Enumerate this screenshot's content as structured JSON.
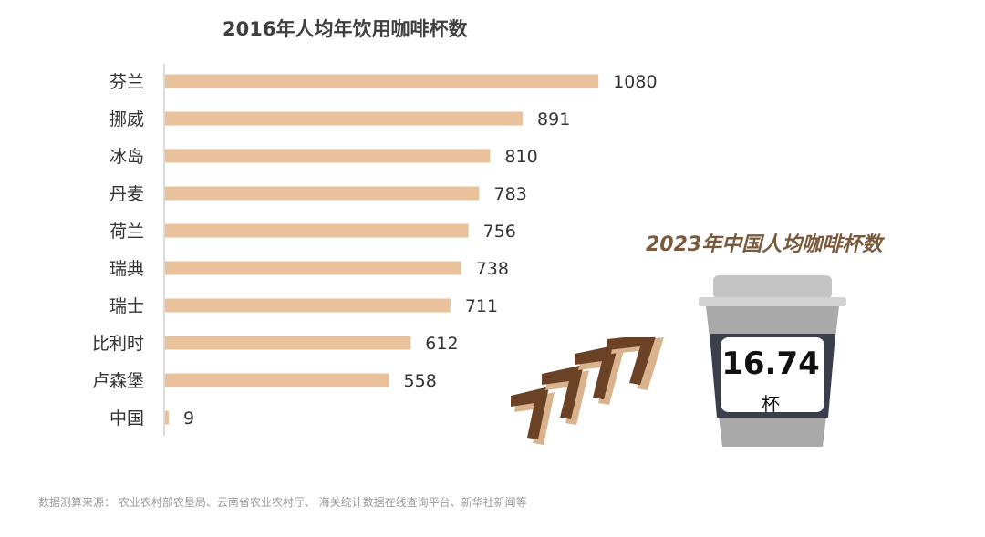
{
  "chart_data": {
    "type": "bar",
    "orientation": "horizontal",
    "title": "2016年人均年饮用咖啡杯数",
    "categories": [
      "芬兰",
      "挪威",
      "冰岛",
      "丹麦",
      "荷兰",
      "瑞典",
      "瑞士",
      "比利时",
      "卢森堡",
      "中国"
    ],
    "values": [
      1080,
      891,
      810,
      783,
      756,
      738,
      711,
      612,
      558,
      9
    ],
    "xlim": [
      0,
      1200
    ],
    "grid": false,
    "legend": "none",
    "bar_color": "#e9c29b"
  },
  "infographic": {
    "title": "2023年中国人均咖啡杯数",
    "value": "16.74",
    "unit": "杯"
  },
  "source_note": "数据测算来源： 农业农村部农垦局、云南省农业农村厅、 海关统计数据在线查询平台、新华社新闻等",
  "colors": {
    "cup_body": "#a9a9a9",
    "cup_lid": "#c4c4c4",
    "cup_band": "#3a3f4b",
    "arrow_dark": "#6b4226",
    "arrow_light": "#d8b38d",
    "title_brown": "#7a5a3c"
  }
}
